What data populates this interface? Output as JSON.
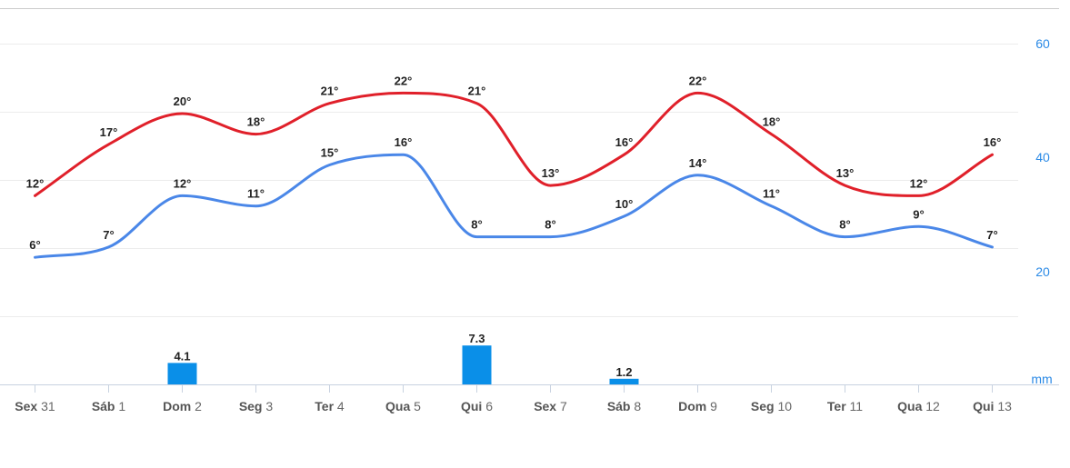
{
  "chart_data": {
    "type": "line",
    "categories": [
      {
        "day": "Sex",
        "num": "31"
      },
      {
        "day": "Sáb",
        "num": "1"
      },
      {
        "day": "Dom",
        "num": "2"
      },
      {
        "day": "Seg",
        "num": "3"
      },
      {
        "day": "Ter",
        "num": "4"
      },
      {
        "day": "Qua",
        "num": "5"
      },
      {
        "day": "Qui",
        "num": "6"
      },
      {
        "day": "Sex",
        "num": "7"
      },
      {
        "day": "Sáb",
        "num": "8"
      },
      {
        "day": "Dom",
        "num": "9"
      },
      {
        "day": "Seg",
        "num": "10"
      },
      {
        "day": "Ter",
        "num": "11"
      },
      {
        "day": "Qua",
        "num": "12"
      },
      {
        "day": "Qui",
        "num": "13"
      }
    ],
    "series": [
      {
        "key": "max",
        "color": "#e0202a",
        "values": [
          12,
          17,
          20,
          18,
          21,
          22,
          21,
          13,
          16,
          22,
          18,
          13,
          12,
          16
        ]
      },
      {
        "key": "min",
        "color": "#4a87e8",
        "values": [
          6,
          7,
          12,
          11,
          15,
          16,
          8,
          8,
          10,
          14,
          11,
          8,
          9,
          7
        ]
      }
    ],
    "precipitation": {
      "color": "#0a8fe8",
      "values": [
        null,
        null,
        4.1,
        null,
        null,
        null,
        7.3,
        null,
        1.2,
        null,
        null,
        null,
        null,
        null
      ],
      "labels": [
        "",
        "",
        "4.1",
        "",
        "",
        "",
        "7.3",
        "",
        "1.2",
        "",
        "",
        "",
        "",
        ""
      ]
    },
    "right_axis": {
      "ticks": [
        "60",
        "40",
        "20"
      ],
      "unit": "mm",
      "color": "#2b8ae6"
    },
    "degree_symbol": "°"
  }
}
